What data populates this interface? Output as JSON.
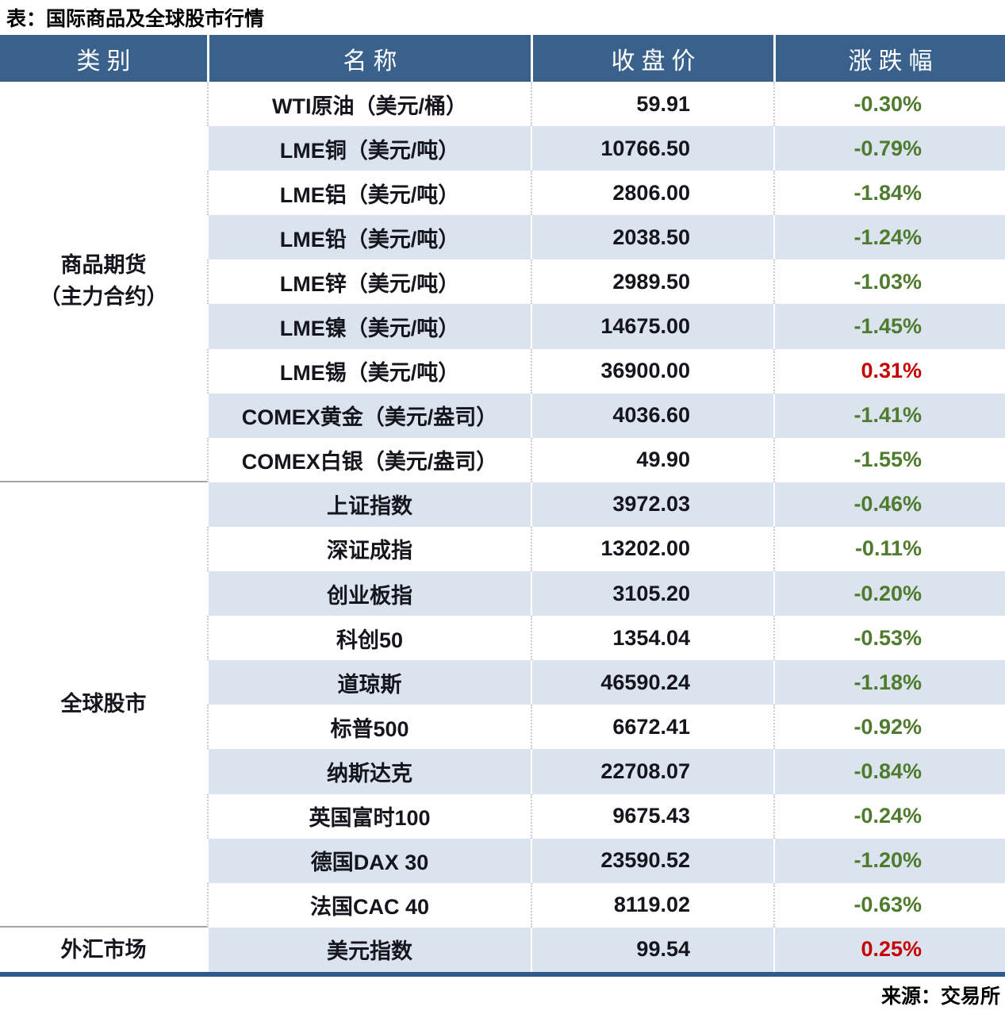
{
  "title": "表：国际商品及全球股市行情",
  "source": "来源：交易所",
  "colors": {
    "header_bg": "#39618C",
    "alt_row_bg": "#DAE3EE",
    "up": "#C40000",
    "down": "#4E7B2D",
    "bottom_border": "#2E5B8C"
  },
  "table": {
    "headers": [
      "类别",
      "名称",
      "收盘价",
      "涨跌幅"
    ],
    "groups": [
      {
        "category_lines": [
          "商品期货",
          "（主力合约）"
        ],
        "rows": [
          {
            "name": "WTI原油（美元/桶）",
            "close": "59.91",
            "change": "-0.30%"
          },
          {
            "name": "LME铜（美元/吨）",
            "close": "10766.50",
            "change": "-0.79%"
          },
          {
            "name": "LME铝（美元/吨）",
            "close": "2806.00",
            "change": "-1.84%"
          },
          {
            "name": "LME铅（美元/吨）",
            "close": "2038.50",
            "change": "-1.24%"
          },
          {
            "name": "LME锌（美元/吨）",
            "close": "2989.50",
            "change": "-1.03%"
          },
          {
            "name": "LME镍（美元/吨）",
            "close": "14675.00",
            "change": "-1.45%"
          },
          {
            "name": "LME锡（美元/吨）",
            "close": "36900.00",
            "change": "0.31%"
          },
          {
            "name": "COMEX黄金（美元/盎司）",
            "close": "4036.60",
            "change": "-1.41%"
          },
          {
            "name": "COMEX白银（美元/盎司）",
            "close": "49.90",
            "change": "-1.55%"
          }
        ]
      },
      {
        "category_lines": [
          "全球股市"
        ],
        "rows": [
          {
            "name": "上证指数",
            "close": "3972.03",
            "change": "-0.46%"
          },
          {
            "name": "深证成指",
            "close": "13202.00",
            "change": "-0.11%"
          },
          {
            "name": "创业板指",
            "close": "3105.20",
            "change": "-0.20%"
          },
          {
            "name": "科创50",
            "close": "1354.04",
            "change": "-0.53%"
          },
          {
            "name": "道琼斯",
            "close": "46590.24",
            "change": "-1.18%"
          },
          {
            "name": "标普500",
            "close": "6672.41",
            "change": "-0.92%"
          },
          {
            "name": "纳斯达克",
            "close": "22708.07",
            "change": "-0.84%"
          },
          {
            "name": "英国富时100",
            "close": "9675.43",
            "change": "-0.24%"
          },
          {
            "name": "德国DAX 30",
            "close": "23590.52",
            "change": "-1.20%"
          },
          {
            "name": "法国CAC 40",
            "close": "8119.02",
            "change": "-0.63%"
          }
        ]
      },
      {
        "category_lines": [
          "外汇市场"
        ],
        "rows": [
          {
            "name": "美元指数",
            "close": "99.54",
            "change": "0.25%"
          }
        ]
      }
    ]
  },
  "chart_data": {
    "type": "table",
    "title": "表：国际商品及全球股市行情",
    "columns": [
      "类别",
      "名称",
      "收盘价",
      "涨跌幅"
    ],
    "rows": [
      [
        "商品期货（主力合约）",
        "WTI原油（美元/桶）",
        59.91,
        "-0.30%"
      ],
      [
        "商品期货（主力合约）",
        "LME铜（美元/吨）",
        10766.5,
        "-0.79%"
      ],
      [
        "商品期货（主力合约）",
        "LME铝（美元/吨）",
        2806.0,
        "-1.84%"
      ],
      [
        "商品期货（主力合约）",
        "LME铅（美元/吨）",
        2038.5,
        "-1.24%"
      ],
      [
        "商品期货（主力合约）",
        "LME锌（美元/吨）",
        2989.5,
        "-1.03%"
      ],
      [
        "商品期货（主力合约）",
        "LME镍（美元/吨）",
        14675.0,
        "-1.45%"
      ],
      [
        "商品期货（主力合约）",
        "LME锡（美元/吨）",
        36900.0,
        "0.31%"
      ],
      [
        "商品期货（主力合约）",
        "COMEX黄金（美元/盎司）",
        4036.6,
        "-1.41%"
      ],
      [
        "商品期货（主力合约）",
        "COMEX白银（美元/盎司）",
        49.9,
        "-1.55%"
      ],
      [
        "全球股市",
        "上证指数",
        3972.03,
        "-0.46%"
      ],
      [
        "全球股市",
        "深证成指",
        13202.0,
        "-0.11%"
      ],
      [
        "全球股市",
        "创业板指",
        3105.2,
        "-0.20%"
      ],
      [
        "全球股市",
        "科创50",
        1354.04,
        "-0.53%"
      ],
      [
        "全球股市",
        "道琼斯",
        46590.24,
        "-1.18%"
      ],
      [
        "全球股市",
        "标普500",
        6672.41,
        "-0.92%"
      ],
      [
        "全球股市",
        "纳斯达克",
        22708.07,
        "-0.84%"
      ],
      [
        "全球股市",
        "英国富时100",
        9675.43,
        "-0.24%"
      ],
      [
        "全球股市",
        "德国DAX 30",
        23590.52,
        "-1.20%"
      ],
      [
        "全球股市",
        "法国CAC 40",
        8119.02,
        "-0.63%"
      ],
      [
        "外汇市场",
        "美元指数",
        99.54,
        "0.25%"
      ]
    ],
    "source": "来源：交易所",
    "legend_note": "green = decline, red = gain (Chinese market convention)"
  }
}
